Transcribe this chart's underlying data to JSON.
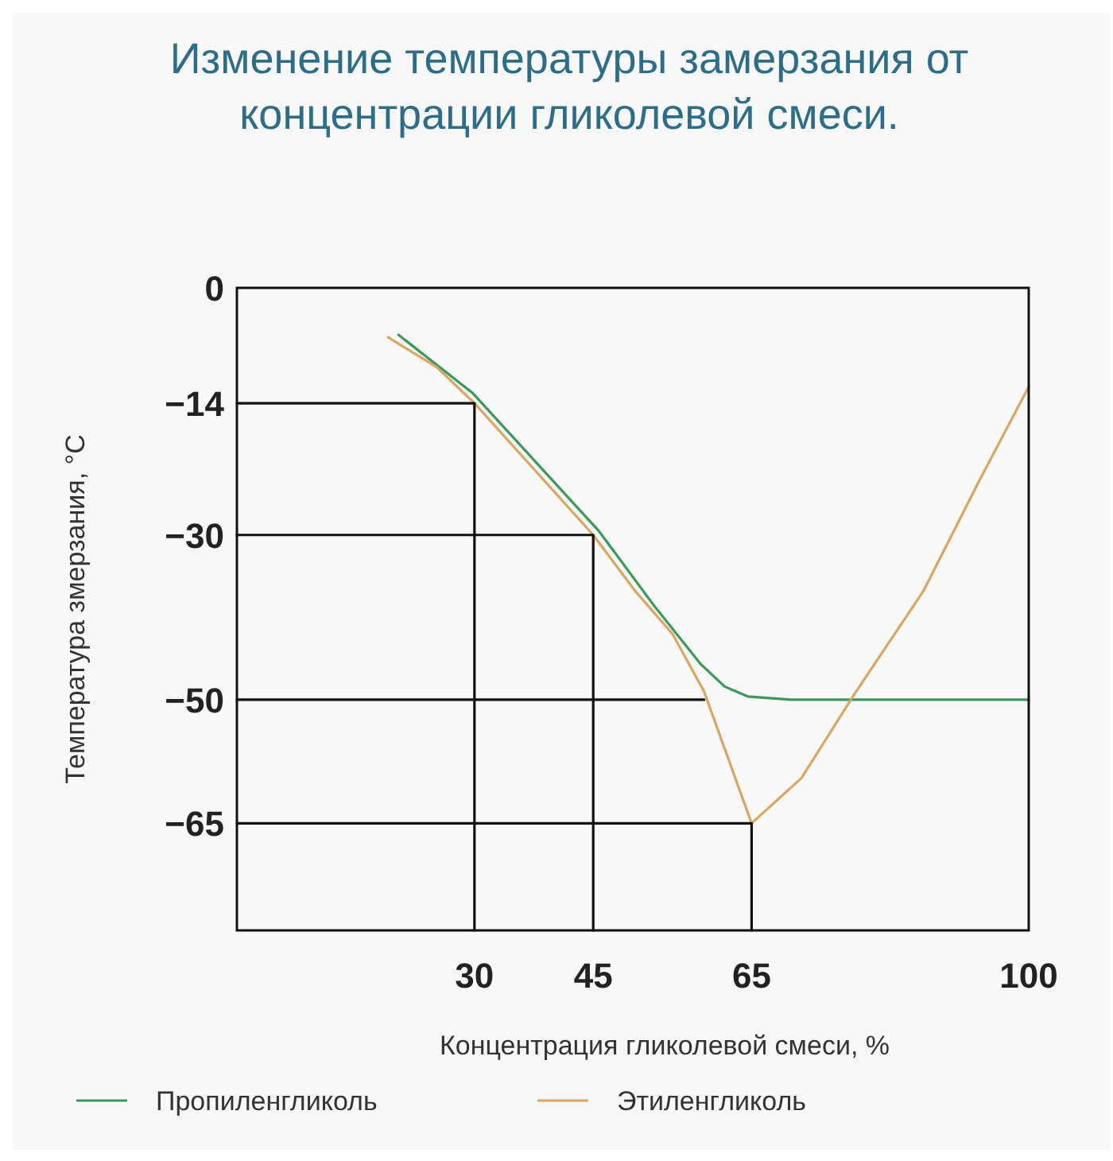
{
  "chart_data": {
    "type": "line",
    "title": "Изменение температуры замерзания от концентрации гликолевой смеси.",
    "xlabel": "Концентрация гликолевой смеси, %",
    "ylabel": "Температура змерзания, °C",
    "xlim": [
      0,
      100
    ],
    "xticks": [
      30,
      45,
      65,
      100
    ],
    "ylim": [
      -78,
      0
    ],
    "yticks": [
      0,
      -14,
      -30,
      -50,
      -65
    ],
    "grid": false,
    "legend": "bottom",
    "line_style": "solid",
    "marker": "none",
    "series": [
      {
        "name": "Пропиленгликоль",
        "color": "#3a9a5c",
        "x": [
          20.4,
          29.8,
          45.7,
          52.7,
          58.6,
          61.6,
          64.5,
          70,
          100
        ],
        "values": [
          -5.7,
          -12.8,
          -29.5,
          -38.6,
          -45.7,
          -48.4,
          -49.6,
          -50,
          -50
        ]
      },
      {
        "name": "Этиленгликоль",
        "color": "#d9a760",
        "x": [
          19.1,
          25.2,
          30,
          45,
          50.3,
          55,
          59,
          65,
          71.3,
          78,
          86.7,
          93.6,
          100
        ],
        "values": [
          -6,
          -9.6,
          -14,
          -30,
          -36.8,
          -42,
          -49,
          -65,
          -59.5,
          -49.3,
          -36.8,
          -23.7,
          -12
        ]
      },
      {
        "color": "#111111",
        "x": [
          0,
          30,
          30
        ],
        "values": [
          -14,
          -14,
          -78
        ]
      },
      {
        "color": "#111111",
        "x": [
          0,
          45,
          45
        ],
        "values": [
          -30,
          -30,
          -78
        ]
      },
      {
        "color": "#111111",
        "x": [
          0,
          59
        ],
        "values": [
          -50,
          -50
        ]
      },
      {
        "color": "#111111",
        "x": [
          0,
          65,
          65
        ],
        "values": [
          -65,
          -65,
          -78
        ]
      }
    ]
  }
}
